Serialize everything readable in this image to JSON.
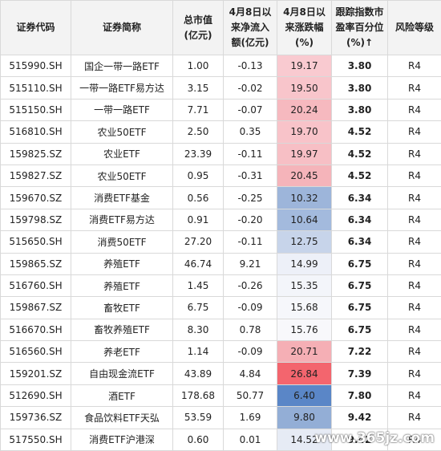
{
  "table": {
    "header": [
      [
        "证券代码"
      ],
      [
        "证券简称"
      ],
      [
        "总市值",
        "(亿元)"
      ],
      [
        "4月8日以",
        "来净流入",
        "额(亿元)"
      ],
      [
        "4月8日以",
        "来涨跌幅",
        "(%)"
      ],
      [
        "跟踪指数市",
        "盈率百分位",
        "(%)↑"
      ],
      [
        "风险等级"
      ]
    ],
    "rows": [
      [
        "515990.SH",
        "国企一带一路ETF",
        "1.00",
        "-0.13",
        "19.17",
        "3.80",
        "R4"
      ],
      [
        "515110.SH",
        "一带一路ETF易方达",
        "3.15",
        "-0.02",
        "19.50",
        "3.80",
        "R4"
      ],
      [
        "515150.SH",
        "一带一路ETF",
        "7.71",
        "-0.07",
        "20.24",
        "3.80",
        "R4"
      ],
      [
        "516810.SH",
        "农业50ETF",
        "2.50",
        "0.35",
        "19.70",
        "4.52",
        "R4"
      ],
      [
        "159825.SZ",
        "农业ETF",
        "23.39",
        "-0.11",
        "19.97",
        "4.52",
        "R4"
      ],
      [
        "159827.SZ",
        "农业50ETF",
        "0.95",
        "-0.31",
        "20.45",
        "4.52",
        "R4"
      ],
      [
        "159670.SZ",
        "消费ETF基金",
        "0.56",
        "-0.25",
        "10.32",
        "6.34",
        "R4"
      ],
      [
        "159798.SZ",
        "消费ETF易方达",
        "0.91",
        "-0.20",
        "10.64",
        "6.34",
        "R4"
      ],
      [
        "515650.SH",
        "消费50ETF",
        "27.20",
        "-0.11",
        "12.75",
        "6.34",
        "R4"
      ],
      [
        "159865.SZ",
        "养殖ETF",
        "46.74",
        "9.21",
        "14.99",
        "6.75",
        "R4"
      ],
      [
        "516760.SH",
        "养殖ETF",
        "1.45",
        "-0.26",
        "15.35",
        "6.75",
        "R4"
      ],
      [
        "159867.SZ",
        "畜牧ETF",
        "6.75",
        "-0.09",
        "15.68",
        "6.75",
        "R4"
      ],
      [
        "516670.SH",
        "畜牧养殖ETF",
        "8.30",
        "0.78",
        "15.76",
        "6.75",
        "R4"
      ],
      [
        "516560.SH",
        "养老ETF",
        "1.14",
        "-0.09",
        "20.71",
        "7.22",
        "R4"
      ],
      [
        "159201.SZ",
        "自由现金流ETF",
        "43.89",
        "4.84",
        "26.84",
        "7.39",
        "R4"
      ],
      [
        "512690.SH",
        "酒ETF",
        "178.68",
        "50.77",
        "6.40",
        "7.80",
        "R4"
      ],
      [
        "159736.SZ",
        "食品饮料ETF天弘",
        "53.59",
        "1.69",
        "9.80",
        "9.42",
        "R4"
      ],
      [
        "517550.SH",
        "消费ETF沪港深",
        "0.60",
        "0.01",
        "14.52",
        "9.42",
        "R4"
      ]
    ],
    "change_colors": [
      "#f9cad0",
      "#f8c5cb",
      "#f6b9bf",
      "#f8c3c9",
      "#f7bfc5",
      "#f5b4ba",
      "#9db5da",
      "#a3badd",
      "#c7d4ea",
      "#edf0f8",
      "#f3f5fa",
      "#f6f7fb",
      "#f8f8fb",
      "#f5afb5",
      "#f3656e",
      "#5a86c7",
      "#93aed6",
      "#e6ebf5"
    ],
    "watermark": "www.365jz.com"
  }
}
